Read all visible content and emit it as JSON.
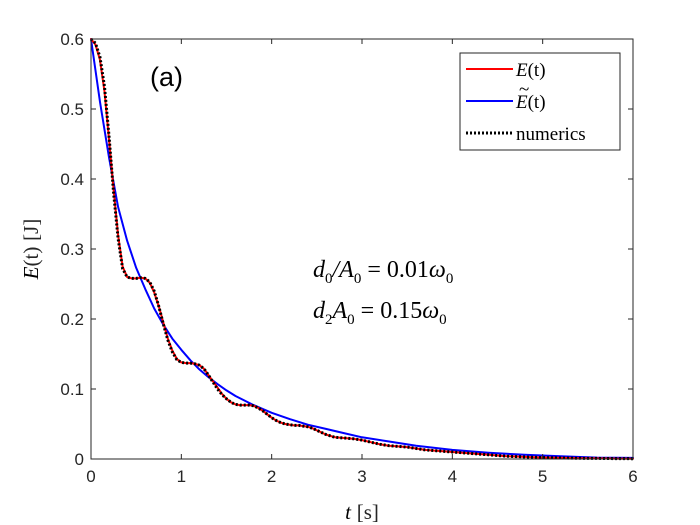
{
  "chart_data": {
    "type": "line",
    "panel_label": "(a)",
    "xlabel_var": "t",
    "xlabel_unit": "[s]",
    "ylabel_text": "E(t) [J]",
    "ylabel_var": "E",
    "ylabel_arg": "(t)",
    "ylabel_unit": "[J]",
    "xlim": [
      0,
      6
    ],
    "ylim": [
      0,
      0.6
    ],
    "xticks": [
      0,
      1,
      2,
      3,
      4,
      5,
      6
    ],
    "yticks": [
      0,
      0.1,
      0.2,
      0.3,
      0.4,
      0.5,
      0.6
    ],
    "xtick_labels": [
      "0",
      "1",
      "2",
      "3",
      "4",
      "5",
      "6"
    ],
    "ytick_labels": [
      "0",
      "0.1",
      "0.2",
      "0.3",
      "0.4",
      "0.5",
      "0.6"
    ],
    "grid": false,
    "legend_position": "top-right",
    "annotations": [
      "d0/A0 = 0.01ω0",
      "d2A0 = 0.15ω0"
    ],
    "annotation_parts": {
      "line1_left": "d",
      "line1_sub1": "0",
      "line1_slash": "/A",
      "line1_sub2": "0",
      "line1_eq": " = 0.01",
      "line1_omega": "ω",
      "line1_sub3": "0",
      "line2_left": "d",
      "line2_sub1": "2",
      "line2_mid": "A",
      "line2_sub2": "0",
      "line2_eq": " = 0.15",
      "line2_omega": "ω",
      "line2_sub3": "0"
    },
    "series": [
      {
        "name": "E(t)",
        "legend_var": "E",
        "legend_arg": "(t)",
        "color": "#ff0000",
        "style": "solid",
        "x": [
          0,
          0.05,
          0.1,
          0.15,
          0.2,
          0.25,
          0.3,
          0.35,
          0.4,
          0.45,
          0.5,
          0.55,
          0.6,
          0.65,
          0.7,
          0.75,
          0.8,
          0.85,
          0.9,
          0.95,
          1.0,
          1.05,
          1.1,
          1.15,
          1.2,
          1.25,
          1.3,
          1.35,
          1.4,
          1.45,
          1.5,
          1.55,
          1.6,
          1.65,
          1.7,
          1.75,
          1.8,
          1.85,
          1.9,
          1.95,
          2.0,
          2.05,
          2.1,
          2.15,
          2.2,
          2.25,
          2.3,
          2.35,
          2.4,
          2.45,
          2.5,
          2.6,
          2.7,
          2.8,
          2.9,
          3.0,
          3.1,
          3.2,
          3.3,
          3.4,
          3.5,
          3.6,
          3.7,
          3.8,
          3.9,
          4.0,
          4.2,
          4.4,
          4.6,
          4.8,
          5.0,
          5.2,
          5.4,
          5.6,
          5.8,
          6.0
        ],
        "y": [
          0.6,
          0.592,
          0.57,
          0.525,
          0.455,
          0.385,
          0.32,
          0.275,
          0.26,
          0.258,
          0.258,
          0.259,
          0.258,
          0.252,
          0.238,
          0.218,
          0.195,
          0.172,
          0.155,
          0.143,
          0.138,
          0.137,
          0.137,
          0.136,
          0.134,
          0.129,
          0.12,
          0.111,
          0.102,
          0.093,
          0.086,
          0.081,
          0.078,
          0.077,
          0.077,
          0.077,
          0.076,
          0.073,
          0.069,
          0.064,
          0.059,
          0.055,
          0.052,
          0.05,
          0.049,
          0.048,
          0.048,
          0.047,
          0.046,
          0.044,
          0.041,
          0.035,
          0.031,
          0.03,
          0.029,
          0.027,
          0.024,
          0.021,
          0.019,
          0.018,
          0.017,
          0.015,
          0.013,
          0.012,
          0.011,
          0.01,
          0.008,
          0.006,
          0.004,
          0.003,
          0.002,
          0.0015,
          0.001,
          0.0008,
          0.0005,
          0.0004
        ]
      },
      {
        "name": "Ẽ(t)",
        "legend_var": "E",
        "legend_tilde": "~",
        "legend_arg": "(t)",
        "color": "#0000ff",
        "style": "solid",
        "x": [
          0,
          0.1,
          0.2,
          0.3,
          0.4,
          0.5,
          0.6,
          0.7,
          0.8,
          0.9,
          1.0,
          1.1,
          1.2,
          1.3,
          1.4,
          1.5,
          1.6,
          1.8,
          2.0,
          2.2,
          2.4,
          2.6,
          2.8,
          3.0,
          3.3,
          3.6,
          4.0,
          4.4,
          4.8,
          5.2,
          5.6,
          6.0
        ],
        "y": [
          0.6,
          0.51,
          0.43,
          0.36,
          0.312,
          0.273,
          0.243,
          0.215,
          0.192,
          0.172,
          0.156,
          0.141,
          0.128,
          0.117,
          0.107,
          0.098,
          0.09,
          0.077,
          0.066,
          0.057,
          0.049,
          0.043,
          0.037,
          0.031,
          0.025,
          0.019,
          0.013,
          0.009,
          0.006,
          0.004,
          0.002,
          0.0015
        ]
      },
      {
        "name": "numerics",
        "legend_label": "numerics",
        "color": "#000000",
        "style": "dotted",
        "x": [
          0,
          0.05,
          0.1,
          0.15,
          0.2,
          0.25,
          0.3,
          0.35,
          0.4,
          0.45,
          0.5,
          0.55,
          0.6,
          0.65,
          0.7,
          0.75,
          0.8,
          0.85,
          0.9,
          0.95,
          1.0,
          1.05,
          1.1,
          1.15,
          1.2,
          1.25,
          1.3,
          1.35,
          1.4,
          1.45,
          1.5,
          1.55,
          1.6,
          1.65,
          1.7,
          1.75,
          1.8,
          1.85,
          1.9,
          1.95,
          2.0,
          2.05,
          2.1,
          2.15,
          2.2,
          2.25,
          2.3,
          2.35,
          2.4,
          2.45,
          2.5,
          2.6,
          2.7,
          2.8,
          2.9,
          3.0,
          3.1,
          3.2,
          3.3,
          3.4,
          3.5,
          3.6,
          3.7,
          3.8,
          3.9,
          4.0,
          4.2,
          4.4,
          4.6,
          4.8,
          5.0,
          5.2,
          5.4,
          5.6,
          5.8,
          6.0
        ],
        "y": [
          0.6,
          0.594,
          0.574,
          0.532,
          0.46,
          0.38,
          0.315,
          0.272,
          0.26,
          0.258,
          0.258,
          0.259,
          0.258,
          0.253,
          0.24,
          0.218,
          0.193,
          0.17,
          0.153,
          0.142,
          0.138,
          0.137,
          0.137,
          0.136,
          0.134,
          0.129,
          0.12,
          0.11,
          0.1,
          0.092,
          0.086,
          0.081,
          0.078,
          0.077,
          0.077,
          0.077,
          0.076,
          0.073,
          0.069,
          0.064,
          0.059,
          0.055,
          0.052,
          0.05,
          0.049,
          0.048,
          0.048,
          0.047,
          0.046,
          0.044,
          0.041,
          0.035,
          0.031,
          0.03,
          0.029,
          0.027,
          0.024,
          0.021,
          0.019,
          0.018,
          0.017,
          0.015,
          0.013,
          0.012,
          0.011,
          0.01,
          0.008,
          0.006,
          0.004,
          0.003,
          0.002,
          0.0015,
          0.001,
          0.0008,
          0.0005,
          0.0004
        ]
      }
    ]
  }
}
